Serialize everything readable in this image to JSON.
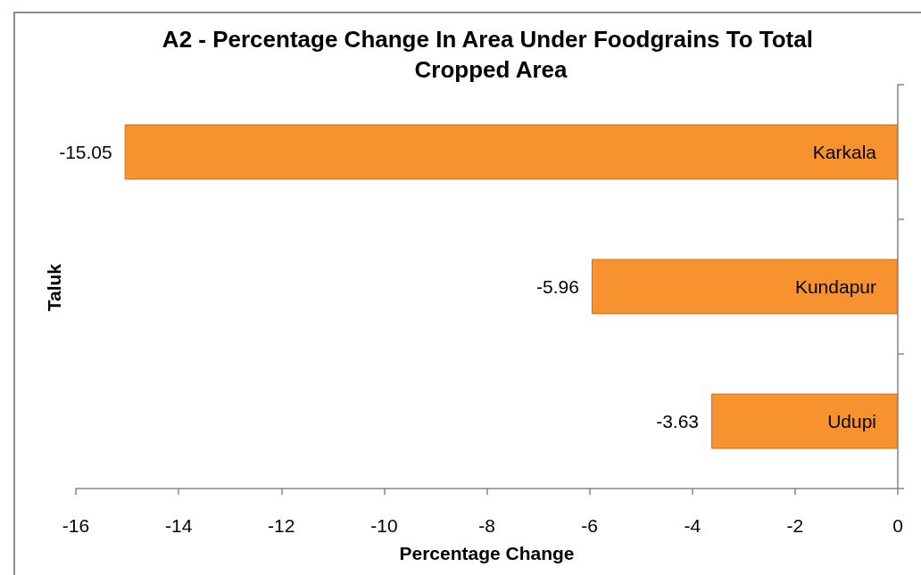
{
  "chart_data": {
    "type": "bar",
    "orientation": "horizontal",
    "title": "A2 - Percentage Change In Area Under Foodgrains To Total Cropped Area",
    "xlabel": "Percentage Change",
    "ylabel": "Taluk",
    "categories": [
      "Karkala",
      "Kundapur",
      "Udupi"
    ],
    "values": [
      -15.05,
      -5.96,
      -3.63
    ],
    "color": "#f7922f",
    "xlim": [
      -16,
      0
    ],
    "xticks": [
      -16,
      -14,
      -12,
      -10,
      -8,
      -6,
      -4,
      -2,
      0
    ],
    "data_labels": true
  }
}
